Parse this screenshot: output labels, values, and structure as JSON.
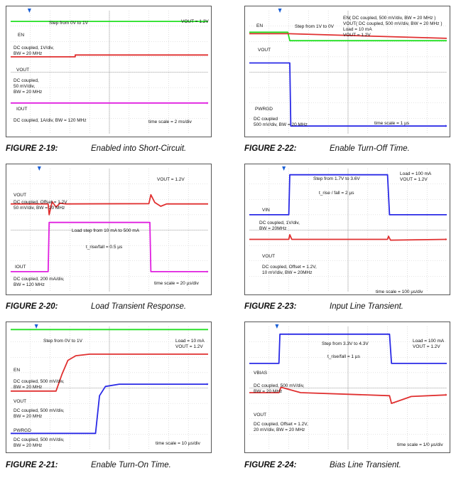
{
  "colors": {
    "green": "#22e022",
    "red": "#e03030",
    "magenta": "#e020e0",
    "blue": "#2a2ae6",
    "grid": "#c9c9c9",
    "trigger": "#1a5fd6"
  },
  "figures": [
    {
      "number": "FIGURE 2-19:",
      "title": "Enabled into Short-Circuit.",
      "chart_data": {
        "type": "line",
        "x_unit": "div",
        "series": [
          {
            "name": "EN",
            "color": "green",
            "points": [
              [
                0,
                7.3
              ],
              [
                3.27,
                7.3
              ],
              [
                3.27,
                7.3
              ],
              [
                10,
                7.3
              ]
            ]
          },
          {
            "name": "VOUT",
            "color": "red",
            "points": [
              [
                0,
                5.0
              ],
              [
                3.27,
                5.0
              ],
              [
                3.27,
                5.12
              ],
              [
                10,
                5.12
              ]
            ]
          },
          {
            "name": "IOUT",
            "color": "magenta",
            "points": [
              [
                0,
                2.0
              ],
              [
                3.27,
                2.0
              ],
              [
                3.27,
                2.0
              ],
              [
                10,
                2.0
              ]
            ]
          }
        ],
        "labels": [
          {
            "name": "annotation-step",
            "text": "Step from 0V to 1V"
          },
          {
            "name": "annotation-vout",
            "text": "VOUT = 1.2V"
          },
          {
            "name": "label-en",
            "text": "EN"
          },
          {
            "name": "desc-en",
            "text": "DC coupled, 1V/div,\nBW = 20 MHz"
          },
          {
            "name": "label-vout",
            "text": "VOUT"
          },
          {
            "name": "desc-vout",
            "text": "DC coupled,\n50 mV/div,\nBW = 20 MHz"
          },
          {
            "name": "label-iout",
            "text": "IOUT"
          },
          {
            "name": "desc-iout",
            "text": "DC coupled, 1A/div, BW = 120 MHz"
          },
          {
            "name": "time-scale",
            "text": "time scale = 2 ms/div"
          }
        ]
      }
    },
    {
      "number": "FIGURE 2-22:",
      "title": "Enable Turn-Off Time.",
      "chart_data": {
        "type": "line",
        "x_unit": "div",
        "series": [
          {
            "name": "EN",
            "color": "green",
            "points": [
              [
                0,
                6.6
              ],
              [
                1.95,
                6.6
              ],
              [
                2.05,
                6.05
              ],
              [
                10,
                6.05
              ]
            ]
          },
          {
            "name": "VOUT",
            "color": "red",
            "points": [
              [
                0,
                6.5
              ],
              [
                2.0,
                6.5
              ],
              [
                10,
                6.2
              ]
            ]
          },
          {
            "name": "PWRGD",
            "color": "blue",
            "points": [
              [
                0,
                4.6
              ],
              [
                2.05,
                4.6
              ],
              [
                2.1,
                0.5
              ],
              [
                10,
                0.5
              ]
            ]
          }
        ],
        "labels": [
          {
            "name": "annotation-step",
            "text": "Step from 1V to 0V"
          },
          {
            "name": "annotation-en",
            "text": "EN( DC coupled, 500 mV/div, BW = 20 MHz )\nVOUT( DC coupled, 500 mV/div, BW = 20 MHz )\nLoad = 10 mA\nVOUT = 1.2V"
          },
          {
            "name": "label-en",
            "text": "EN"
          },
          {
            "name": "label-vout",
            "text": "VOUT"
          },
          {
            "name": "label-pwrgd",
            "text": "PWRGD"
          },
          {
            "name": "desc-pwrgd",
            "text": "DC coupled\n500 mV/div, BW = 20 MHz"
          },
          {
            "name": "time-scale",
            "text": "time scale = 1 µs"
          }
        ]
      }
    },
    {
      "number": "FIGURE 2-20:",
      "title": "Load Transient Response.",
      "chart_data": {
        "type": "line",
        "x_unit": "div",
        "series": [
          {
            "name": "VOUT",
            "color": "red",
            "points": [
              [
                0,
                5.7
              ],
              [
                1.9,
                5.7
              ],
              [
                1.95,
                5.0
              ],
              [
                2.1,
                5.85
              ],
              [
                2.3,
                5.5
              ],
              [
                2.5,
                5.75
              ],
              [
                2.8,
                5.7
              ],
              [
                7.0,
                5.72
              ],
              [
                7.1,
                6.3
              ],
              [
                7.3,
                5.8
              ],
              [
                7.6,
                5.55
              ],
              [
                7.9,
                5.7
              ],
              [
                10,
                5.7
              ]
            ]
          },
          {
            "name": "IOUT",
            "color": "magenta",
            "points": [
              [
                0,
                1.3
              ],
              [
                1.9,
                1.3
              ],
              [
                1.95,
                4.5
              ],
              [
                7.05,
                4.5
              ],
              [
                7.1,
                1.3
              ],
              [
                10,
                1.3
              ]
            ]
          }
        ],
        "labels": [
          {
            "name": "annotation-vout",
            "text": "VOUT = 1.2V"
          },
          {
            "name": "label-vout",
            "text": "VOUT"
          },
          {
            "name": "desc-vout",
            "text": "DC coupled, Offset = 1.2V\n50 mV/div, BW = 20 MHz"
          },
          {
            "name": "annotation-load-step",
            "text": "Load step from 10 mA to 500 mA"
          },
          {
            "name": "annotation-rise",
            "text": "t_rise/fall = 0.5 µs"
          },
          {
            "name": "label-iout",
            "text": "IOUT"
          },
          {
            "name": "desc-iout",
            "text": "DC coupled, 200 mA/div,\nBW = 120 MHz"
          },
          {
            "name": "time-scale",
            "text": "time scale = 20 µs/div"
          }
        ]
      }
    },
    {
      "number": "FIGURE 2-23:",
      "title": "Input Line Transient.",
      "chart_data": {
        "type": "line",
        "x_unit": "div",
        "series": [
          {
            "name": "VIN",
            "color": "blue",
            "points": [
              [
                0,
                5.0
              ],
              [
                2.0,
                5.0
              ],
              [
                2.05,
                7.6
              ],
              [
                7.0,
                7.6
              ],
              [
                7.1,
                5.0
              ],
              [
                10,
                5.0
              ]
            ]
          },
          {
            "name": "VOUT",
            "color": "red",
            "points": [
              [
                0,
                3.4
              ],
              [
                2.0,
                3.4
              ],
              [
                2.05,
                3.7
              ],
              [
                2.15,
                3.4
              ],
              [
                7.0,
                3.4
              ],
              [
                7.05,
                3.6
              ],
              [
                7.15,
                3.35
              ],
              [
                10,
                3.4
              ]
            ]
          }
        ],
        "labels": [
          {
            "name": "annotation-step",
            "text": "Step from 1.7V to 3.6V"
          },
          {
            "name": "annotation-load",
            "text": "Load = 100 mA\nVOUT = 1.2V"
          },
          {
            "name": "annotation-rise",
            "text": "t_rise / fall = 2 µs"
          },
          {
            "name": "label-vin",
            "text": "VIN"
          },
          {
            "name": "desc-vin",
            "text": "DC coupled, 1V/div,\nBW = 20MHz"
          },
          {
            "name": "label-vout",
            "text": "VOUT"
          },
          {
            "name": "desc-vout",
            "text": "DC coupled, Offset = 1.2V,\n10 mV/div, BW = 20MHz"
          },
          {
            "name": "time-scale",
            "text": "time scale = 100 µs/div"
          }
        ]
      }
    },
    {
      "number": "FIGURE 2-21:",
      "title": "Enable Turn-On Time.",
      "chart_data": {
        "type": "line",
        "x_unit": "div",
        "series": [
          {
            "name": "EN",
            "color": "green",
            "points": [
              [
                0,
                7.8
              ],
              [
                10,
                7.8
              ]
            ]
          },
          {
            "name": "VOUT",
            "color": "red",
            "points": [
              [
                0,
                3.8
              ],
              [
                2.3,
                3.8
              ],
              [
                2.6,
                4.9
              ],
              [
                2.9,
                5.8
              ],
              [
                3.3,
                6.1
              ],
              [
                4,
                6.2
              ],
              [
                10,
                6.2
              ]
            ]
          },
          {
            "name": "PWRGD",
            "color": "blue",
            "points": [
              [
                0,
                1.05
              ],
              [
                4.3,
                1.05
              ],
              [
                4.5,
                3.5
              ],
              [
                4.8,
                4.1
              ],
              [
                5.5,
                4.25
              ],
              [
                10,
                4.25
              ]
            ]
          }
        ],
        "labels": [
          {
            "name": "annotation-step",
            "text": "Step from 0V to 1V"
          },
          {
            "name": "annotation-load",
            "text": "Load = 10 mA\nVOUT = 1.2V"
          },
          {
            "name": "label-en",
            "text": "EN"
          },
          {
            "name": "desc-en",
            "text": "DC coupled, 500 mV/div,\nBW = 20 MHz"
          },
          {
            "name": "label-vout",
            "text": "VOUT"
          },
          {
            "name": "desc-vout",
            "text": "DC coupled, 500 mV/div,\nBW = 20 MHz"
          },
          {
            "name": "label-pwrgd",
            "text": "PWRGD"
          },
          {
            "name": "desc-pwrgd",
            "text": "DC coupled, 500 mV/div,\nBW = 20 MHz"
          },
          {
            "name": "time-scale",
            "text": "time scale = 10 µs/div"
          }
        ]
      }
    },
    {
      "number": "FIGURE 2-24:",
      "title": "Bias Line Transient.",
      "chart_data": {
        "type": "line",
        "x_unit": "div",
        "series": [
          {
            "name": "VBIAS",
            "color": "blue",
            "points": [
              [
                0,
                5.6
              ],
              [
                1.5,
                5.6
              ],
              [
                1.55,
                7.5
              ],
              [
                7.1,
                7.5
              ],
              [
                7.2,
                5.6
              ],
              [
                10,
                5.6
              ]
            ]
          },
          {
            "name": "VOUT",
            "color": "red",
            "points": [
              [
                0,
                3.7
              ],
              [
                1.5,
                3.7
              ],
              [
                1.6,
                4.05
              ],
              [
                2.6,
                3.7
              ],
              [
                7.1,
                3.5
              ],
              [
                7.2,
                3.0
              ],
              [
                8.2,
                3.45
              ],
              [
                10,
                3.55
              ]
            ]
          }
        ],
        "labels": [
          {
            "name": "annotation-step",
            "text": "Step from 3.3V to 4.3V"
          },
          {
            "name": "annotation-load",
            "text": "Load = 100 mA\nVOUT = 1.2V"
          },
          {
            "name": "annotation-rise",
            "text": "t_rise/fall = 1 µs"
          },
          {
            "name": "label-vbias",
            "text": "VBIAS"
          },
          {
            "name": "desc-vbias",
            "text": "DC coupled, 500 mV/div,\nBW = 20 MHz"
          },
          {
            "name": "label-vout",
            "text": "VOUT"
          },
          {
            "name": "desc-vout",
            "text": "DC coupled, Offset = 1.2V,\n20 mV/div, BW = 20 MHz"
          },
          {
            "name": "time-scale",
            "text": "time scale = 1/0 µs/div"
          }
        ]
      }
    }
  ]
}
